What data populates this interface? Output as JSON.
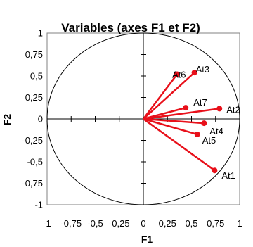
{
  "chart_data": {
    "type": "scatter",
    "title": "Variables (axes F1 et F2)",
    "xlabel": "F1",
    "ylabel": "F2",
    "xlim": [
      -1,
      1
    ],
    "ylim": [
      -1,
      1
    ],
    "xticks": [
      "-1",
      "-0,75",
      "-0,5",
      "-0,25",
      "0",
      "0,25",
      "0,5",
      "0,75",
      "1"
    ],
    "yticks": [
      "1",
      "0,75",
      "0,5",
      "0,25",
      "0",
      "-0,25",
      "-0,5",
      "-0,75",
      "-1"
    ],
    "grid": false,
    "correlation_circle": true,
    "colors": {
      "vectors": "#e8101a",
      "axes": "#000000",
      "circle": "#000000"
    },
    "points": [
      {
        "name": "At1",
        "x": 0.74,
        "y": -0.6
      },
      {
        "name": "At2",
        "x": 0.79,
        "y": 0.12
      },
      {
        "name": "At3",
        "x": 0.53,
        "y": 0.54
      },
      {
        "name": "At4",
        "x": 0.63,
        "y": -0.05
      },
      {
        "name": "At5",
        "x": 0.56,
        "y": -0.18
      },
      {
        "name": "At6",
        "x": 0.35,
        "y": 0.52
      },
      {
        "name": "At7",
        "x": 0.44,
        "y": 0.13
      }
    ]
  }
}
